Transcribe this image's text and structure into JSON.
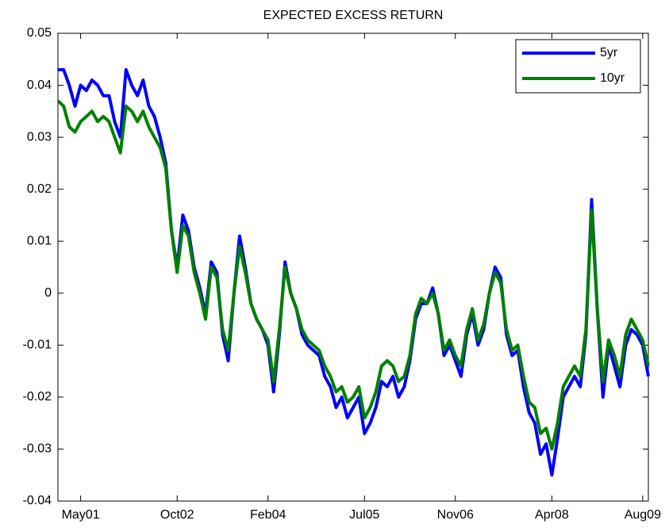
{
  "chart_data": {
    "type": "line",
    "title": "EXPECTED EXCESS RETURN",
    "x": [
      "2001-01",
      "2001-02",
      "2001-03",
      "2001-04",
      "2001-05",
      "2001-06",
      "2001-07",
      "2001-08",
      "2001-09",
      "2001-10",
      "2001-11",
      "2001-12",
      "2002-01",
      "2002-02",
      "2002-03",
      "2002-04",
      "2002-05",
      "2002-06",
      "2002-07",
      "2002-08",
      "2002-09",
      "2002-10",
      "2002-11",
      "2002-12",
      "2003-01",
      "2003-02",
      "2003-03",
      "2003-04",
      "2003-05",
      "2003-06",
      "2003-07",
      "2003-08",
      "2003-09",
      "2003-10",
      "2003-11",
      "2003-12",
      "2004-01",
      "2004-02",
      "2004-03",
      "2004-04",
      "2004-05",
      "2004-06",
      "2004-07",
      "2004-08",
      "2004-09",
      "2004-10",
      "2004-11",
      "2004-12",
      "2005-01",
      "2005-02",
      "2005-03",
      "2005-04",
      "2005-05",
      "2005-06",
      "2005-07",
      "2005-08",
      "2005-09",
      "2005-10",
      "2005-11",
      "2005-12",
      "2006-01",
      "2006-02",
      "2006-03",
      "2006-04",
      "2006-05",
      "2006-06",
      "2006-07",
      "2006-08",
      "2006-09",
      "2006-10",
      "2006-11",
      "2006-12",
      "2007-01",
      "2007-02",
      "2007-03",
      "2007-04",
      "2007-05",
      "2007-06",
      "2007-07",
      "2007-08",
      "2007-09",
      "2007-10",
      "2007-11",
      "2007-12",
      "2008-01",
      "2008-02",
      "2008-03",
      "2008-04",
      "2008-05",
      "2008-06",
      "2008-07",
      "2008-08",
      "2008-09",
      "2008-10",
      "2008-11",
      "2008-12",
      "2009-01",
      "2009-02",
      "2009-03",
      "2009-04",
      "2009-05",
      "2009-06",
      "2009-07",
      "2009-08",
      "2009-09"
    ],
    "series": [
      {
        "name": "5yr",
        "color": "#0000ff",
        "values": [
          0.043,
          0.043,
          0.04,
          0.036,
          0.04,
          0.039,
          0.041,
          0.04,
          0.038,
          0.038,
          0.033,
          0.03,
          0.043,
          0.04,
          0.038,
          0.041,
          0.036,
          0.034,
          0.03,
          0.025,
          0.012,
          0.005,
          0.015,
          0.012,
          0.005,
          0.001,
          -0.004,
          0.006,
          0.004,
          -0.008,
          -0.013,
          0.0,
          0.011,
          0.005,
          -0.002,
          -0.005,
          -0.007,
          -0.01,
          -0.019,
          -0.008,
          0.006,
          0.0,
          -0.003,
          -0.008,
          -0.01,
          -0.011,
          -0.012,
          -0.016,
          -0.018,
          -0.022,
          -0.02,
          -0.024,
          -0.022,
          -0.02,
          -0.027,
          -0.025,
          -0.022,
          -0.017,
          -0.018,
          -0.016,
          -0.02,
          -0.018,
          -0.013,
          -0.005,
          -0.002,
          -0.002,
          0.001,
          -0.004,
          -0.012,
          -0.01,
          -0.013,
          -0.016,
          -0.008,
          -0.004,
          -0.01,
          -0.007,
          0.0,
          0.005,
          0.003,
          -0.008,
          -0.012,
          -0.011,
          -0.018,
          -0.023,
          -0.025,
          -0.031,
          -0.029,
          -0.035,
          -0.028,
          -0.02,
          -0.018,
          -0.016,
          -0.018,
          -0.008,
          0.018,
          -0.003,
          -0.02,
          -0.01,
          -0.014,
          -0.018,
          -0.01,
          -0.007,
          -0.008,
          -0.01,
          -0.016
        ]
      },
      {
        "name": "10yr",
        "color": "#008000",
        "values": [
          0.037,
          0.036,
          0.032,
          0.031,
          0.033,
          0.034,
          0.035,
          0.033,
          0.034,
          0.033,
          0.03,
          0.027,
          0.036,
          0.035,
          0.033,
          0.035,
          0.032,
          0.03,
          0.028,
          0.024,
          0.012,
          0.004,
          0.013,
          0.011,
          0.004,
          0.0,
          -0.005,
          0.005,
          0.003,
          -0.007,
          -0.011,
          0.0,
          0.009,
          0.004,
          -0.002,
          -0.005,
          -0.007,
          -0.009,
          -0.017,
          -0.007,
          0.005,
          0.0,
          -0.003,
          -0.007,
          -0.009,
          -0.01,
          -0.011,
          -0.014,
          -0.016,
          -0.019,
          -0.018,
          -0.021,
          -0.02,
          -0.018,
          -0.024,
          -0.022,
          -0.019,
          -0.014,
          -0.013,
          -0.014,
          -0.017,
          -0.016,
          -0.012,
          -0.004,
          -0.001,
          -0.002,
          0.0,
          -0.004,
          -0.011,
          -0.009,
          -0.012,
          -0.014,
          -0.007,
          -0.003,
          -0.009,
          -0.006,
          0.0,
          0.004,
          0.002,
          -0.007,
          -0.011,
          -0.01,
          -0.016,
          -0.021,
          -0.022,
          -0.027,
          -0.026,
          -0.03,
          -0.025,
          -0.018,
          -0.016,
          -0.014,
          -0.016,
          -0.007,
          0.016,
          -0.003,
          -0.017,
          -0.009,
          -0.012,
          -0.016,
          -0.008,
          -0.005,
          -0.007,
          -0.009,
          -0.014
        ]
      }
    ],
    "xlim": [
      "2001-01",
      "2009-09"
    ],
    "xticks": [
      {
        "value": "2001-05",
        "label": "May01"
      },
      {
        "value": "2002-10",
        "label": "Oct02"
      },
      {
        "value": "2004-02",
        "label": "Feb04"
      },
      {
        "value": "2005-07",
        "label": "Jul05"
      },
      {
        "value": "2006-11",
        "label": "Nov06"
      },
      {
        "value": "2008-04",
        "label": "Apr08"
      },
      {
        "value": "2009-08",
        "label": "Aug09"
      }
    ],
    "ylim": [
      -0.04,
      0.05
    ],
    "yticks": [
      -0.04,
      -0.03,
      -0.02,
      -0.01,
      0,
      0.01,
      0.02,
      0.03,
      0.04,
      0.05
    ],
    "legend": "upper-right"
  }
}
